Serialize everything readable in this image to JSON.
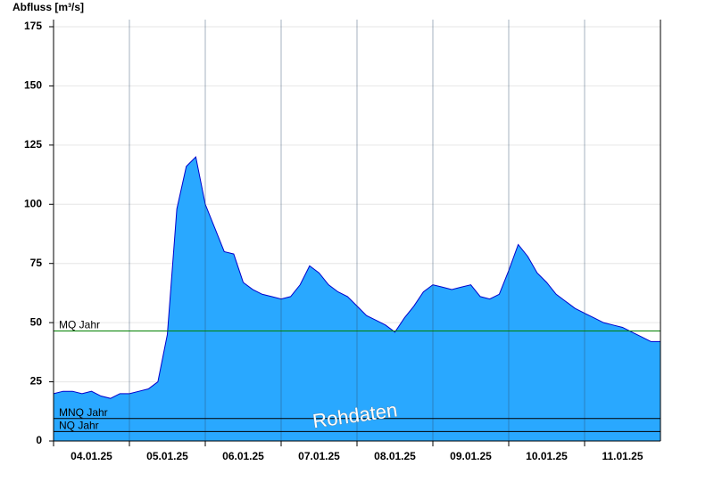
{
  "chart_data": {
    "type": "area",
    "y_label": "Abfluss [m³/s]",
    "x": [
      0,
      0.125,
      0.25,
      0.375,
      0.5,
      0.625,
      0.75,
      0.875,
      1,
      1.125,
      1.25,
      1.375,
      1.5,
      1.625,
      1.75,
      1.875,
      2,
      2.125,
      2.25,
      2.375,
      2.5,
      2.625,
      2.75,
      2.875,
      3,
      3.125,
      3.25,
      3.375,
      3.5,
      3.625,
      3.75,
      3.875,
      4,
      4.125,
      4.25,
      4.375,
      4.5,
      4.625,
      4.75,
      4.875,
      5,
      5.125,
      5.25,
      5.375,
      5.5,
      5.625,
      5.75,
      5.875,
      6,
      6.125,
      6.25,
      6.375,
      6.5,
      6.625,
      6.75,
      6.875,
      7,
      7.125,
      7.25,
      7.375,
      7.5,
      7.625,
      7.75,
      7.875,
      8
    ],
    "series": [
      {
        "color": "#29a8ff",
        "line_color": "#0000cc",
        "values": [
          20,
          21,
          21,
          20,
          21,
          19,
          18,
          20,
          20,
          21,
          22,
          25,
          45,
          98,
          116,
          120,
          100,
          90,
          80,
          79,
          67,
          64,
          62,
          61,
          60,
          61,
          66,
          74,
          71,
          66,
          63,
          61,
          57,
          53,
          51,
          49,
          46,
          52,
          57,
          63,
          66,
          65,
          64,
          65,
          66,
          61,
          60,
          62,
          72,
          83,
          78,
          71,
          67,
          62,
          59,
          56,
          54,
          52,
          50,
          49,
          48,
          46,
          44,
          42,
          42
        ]
      }
    ],
    "xlim": [
      0,
      8
    ],
    "xticks": [
      {
        "value": 0,
        "label": "04.01.25"
      },
      {
        "value": 1,
        "label": "05.01.25"
      },
      {
        "value": 2,
        "label": "06.01.25"
      },
      {
        "value": 3,
        "label": "07.01.25"
      },
      {
        "value": 4,
        "label": "08.01.25"
      },
      {
        "value": 5,
        "label": "09.01.25"
      },
      {
        "value": 6,
        "label": "10.01.25"
      },
      {
        "value": 7,
        "label": "11.01.25"
      }
    ],
    "ylim": [
      0,
      175
    ],
    "yticks": [
      0,
      25,
      50,
      75,
      100,
      125,
      150,
      175
    ],
    "grid": true,
    "ref_lines": [
      {
        "name": "MQ Jahr",
        "value": 46.5,
        "color": "#008000"
      },
      {
        "name": "MNQ Jahr",
        "value": 9.5,
        "color": "#000000"
      },
      {
        "name": "NQ Jahr",
        "value": 4,
        "color": "#000000"
      }
    ],
    "watermark": "Rohdaten"
  }
}
